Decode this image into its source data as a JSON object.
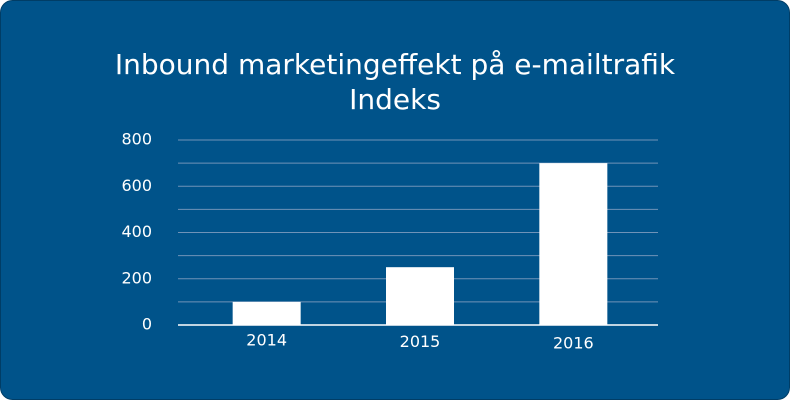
{
  "chart_data": {
    "type": "bar",
    "title": "Inbound marketingeffekt på e-mailtrafik",
    "subtitle": "Indeks",
    "categories": [
      "2014",
      "2015",
      "2016"
    ],
    "values": [
      100,
      250,
      700
    ],
    "color": "#ffffff",
    "ylim": [
      0,
      800
    ],
    "yticks": [
      0,
      200,
      400,
      600,
      800
    ],
    "minor_yticks": [
      100,
      300,
      500,
      700
    ],
    "grid": true
  }
}
